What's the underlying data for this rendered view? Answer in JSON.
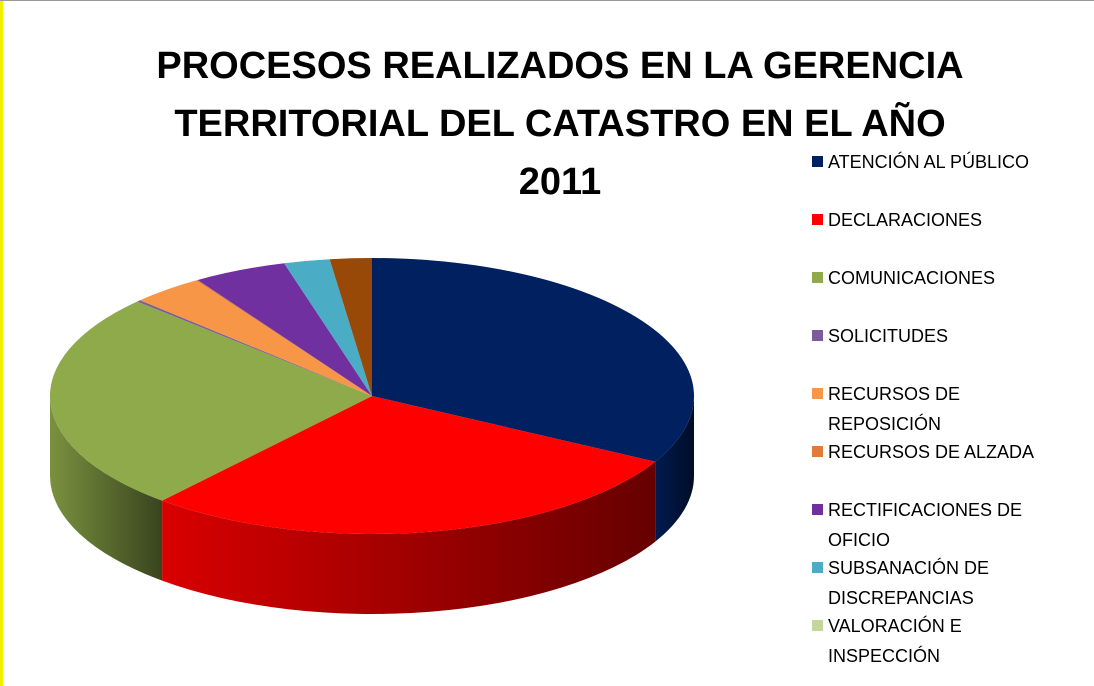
{
  "chart_data": {
    "type": "pie3d",
    "title": "PROCESOS REALIZADOS EN LA GERENCIA\nTERRITORIAL DEL CATASTRO EN EL AÑO\n2011",
    "categories": [
      "ATENCIÓN AL PÚBLICO",
      "DECLARACIONES",
      "COMUNICACIONES",
      "SOLICITUDES",
      "RECURSOS DE REPOSICIÓN",
      "RECURSOS DE ALZADA",
      "RECTIFICACIONES DE OFICIO",
      "SUBSANACIÓN DE DISCREPANCIAS",
      "VALORACIÓN E INSPECCIÓN",
      null
    ],
    "values": [
      32.9,
      28.4,
      25.7,
      0.2,
      3.6,
      0.1,
      4.7,
      2.3,
      0,
      2.1
    ],
    "colors": [
      "#00205f",
      "#ff0000",
      "#8faa4a",
      "#7b5c99",
      "#f79646",
      "#e07b39",
      "#7030a0",
      "#4bacc6",
      "#c3d69b",
      "#984807"
    ],
    "legend": "right"
  }
}
